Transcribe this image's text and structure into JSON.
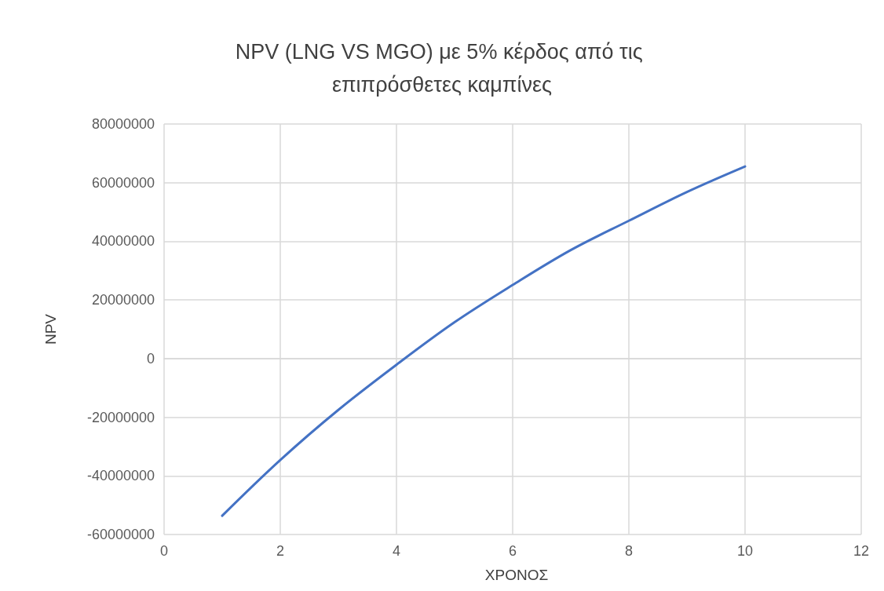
{
  "chart_data": {
    "type": "line",
    "title": "NPV (LNG VS MGO) με 5% κέρδος από τις επιπρόσθετες καμπίνες",
    "xlabel": "ΧΡΟΝΟΣ",
    "ylabel": "NPV",
    "x": [
      1,
      2,
      3,
      4,
      5,
      6,
      7,
      8,
      9,
      10
    ],
    "series": [
      {
        "color": "#4472c4",
        "values": [
          -53600000,
          -34600000,
          -17500000,
          -2100000,
          12400000,
          25100000,
          37000000,
          47000000,
          56800000,
          65500000
        ]
      }
    ],
    "xlim": [
      0,
      12
    ],
    "xticks": [
      0,
      2,
      4,
      6,
      8,
      10,
      12
    ],
    "ylim": [
      -60000000,
      80000000
    ],
    "yticks": [
      -60000000,
      -40000000,
      -20000000,
      0,
      20000000,
      40000000,
      60000000,
      80000000
    ],
    "grid": true,
    "marker": "none",
    "line_style": "solid"
  }
}
